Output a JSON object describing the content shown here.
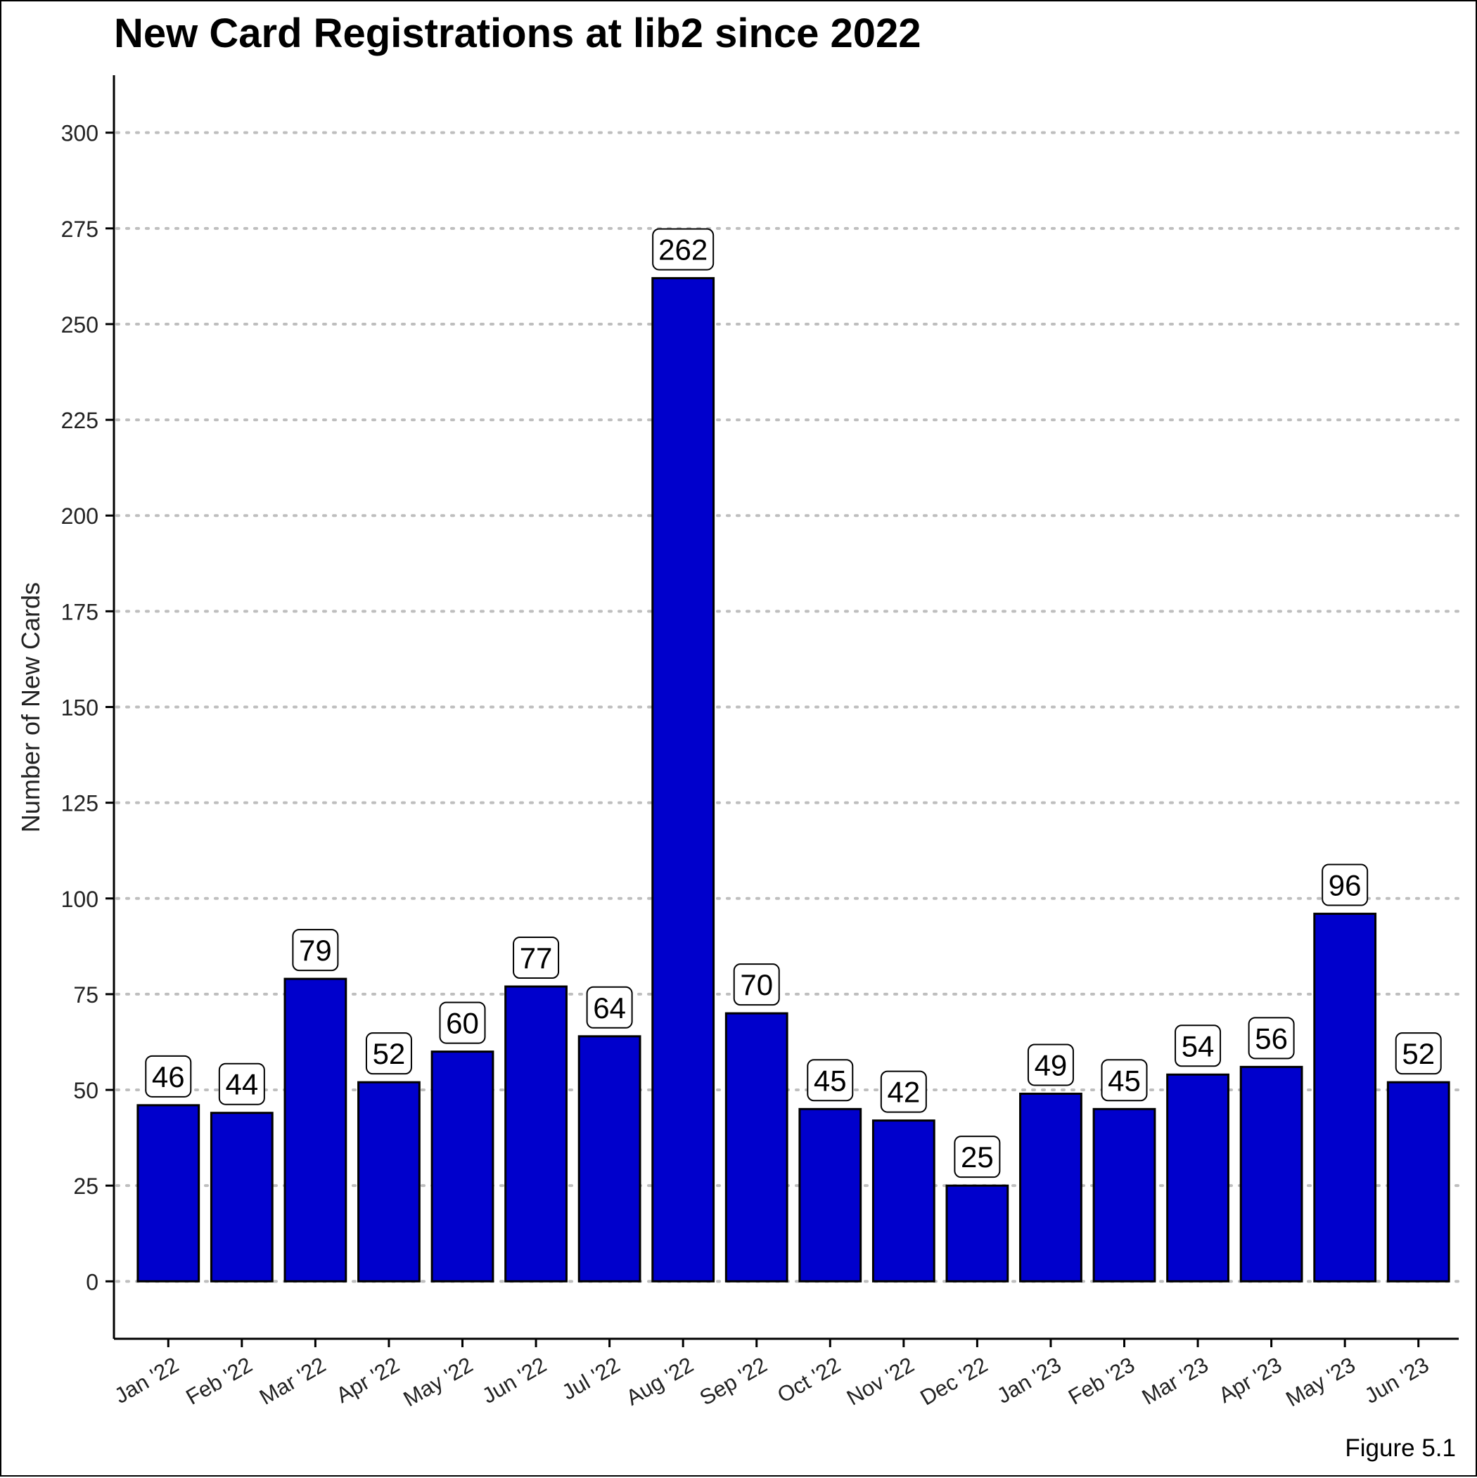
{
  "chart_data": {
    "type": "bar",
    "title": "New Card Registrations at lib2 since 2022",
    "xlabel": "",
    "ylabel": "Number of New Cards",
    "caption": "Figure 5.1",
    "categories": [
      "Jan '22",
      "Feb '22",
      "Mar '22",
      "Apr '22",
      "May '22",
      "Jun '22",
      "Jul '22",
      "Aug '22",
      "Sep '22",
      "Oct '22",
      "Nov '22",
      "Dec '22",
      "Jan '23",
      "Feb '23",
      "Mar '23",
      "Apr '23",
      "May '23",
      "Jun '23"
    ],
    "values": [
      46,
      44,
      79,
      52,
      60,
      77,
      64,
      262,
      70,
      45,
      42,
      25,
      49,
      45,
      54,
      56,
      96,
      52
    ],
    "data_labels": [
      "46",
      "44",
      "79",
      "52",
      "60",
      "77",
      "64",
      "262",
      "70",
      "45",
      "42",
      "25",
      "49",
      "45",
      "54",
      "56",
      "96",
      "52"
    ],
    "ylim": [
      -15,
      315
    ],
    "yticks": [
      0,
      25,
      50,
      75,
      100,
      125,
      150,
      175,
      200,
      225,
      250,
      275,
      300
    ],
    "ytick_labels": [
      "0",
      "25",
      "50",
      "75",
      "100",
      "125",
      "150",
      "175",
      "200",
      "225",
      "250",
      "275",
      "300"
    ],
    "grid": "horizontal dotted",
    "legend": "none",
    "colors": {
      "bar_fill": "#0000CC",
      "bar_border": "#000000",
      "grid": "#BEBEBE",
      "axis": "#000000"
    }
  }
}
